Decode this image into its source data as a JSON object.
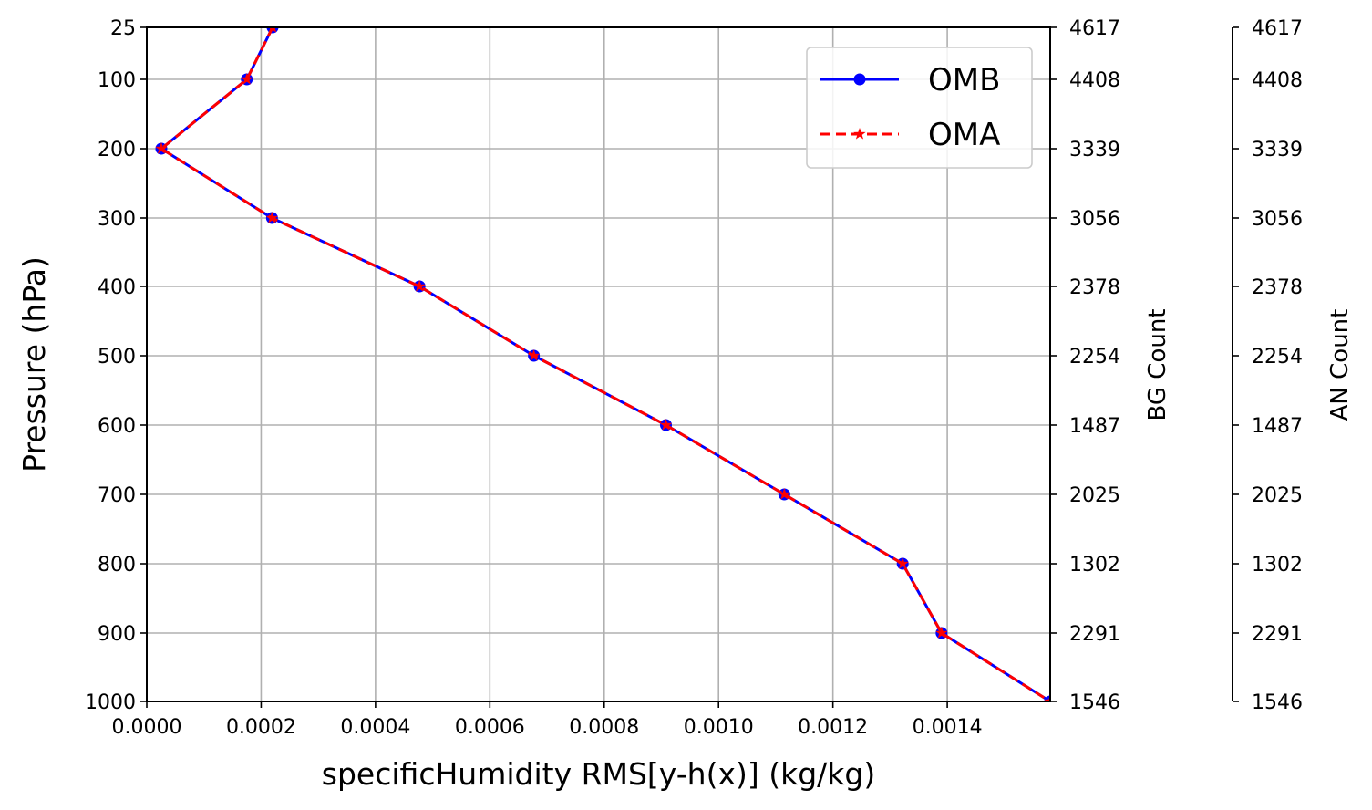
{
  "chart_data": {
    "type": "line",
    "xlabel": "specificHumidity RMS[y-h(x)] (kg/kg)",
    "ylabel": "Pressure (hPa)",
    "xlim": [
      0.0,
      0.00158
    ],
    "ylim_inverted": true,
    "x_ticks": [
      {
        "value": 0.0,
        "label": "0.0000"
      },
      {
        "value": 0.0002,
        "label": "0.0002"
      },
      {
        "value": 0.0004,
        "label": "0.0004"
      },
      {
        "value": 0.0006,
        "label": "0.0006"
      },
      {
        "value": 0.0008,
        "label": "0.0008"
      },
      {
        "value": 0.001,
        "label": "0.0010"
      },
      {
        "value": 0.0012,
        "label": "0.0012"
      },
      {
        "value": 0.0014,
        "label": "0.0014"
      }
    ],
    "pressure_levels": [
      "25",
      "100",
      "200",
      "300",
      "400",
      "500",
      "600",
      "700",
      "800",
      "900",
      "1000"
    ],
    "bg_count_label": "BG Count",
    "bg_counts": [
      "4617",
      "4408",
      "3339",
      "3056",
      "2378",
      "2254",
      "1487",
      "2025",
      "1302",
      "2291",
      "1546"
    ],
    "an_count_label": "AN Count",
    "an_counts": [
      "4617",
      "4408",
      "3339",
      "3056",
      "2378",
      "2254",
      "1487",
      "2025",
      "1302",
      "2291",
      "1546"
    ],
    "grid": true,
    "legend_position": "top-right",
    "series": [
      {
        "name": "OMB",
        "color": "#0000ff",
        "style": "solid",
        "marker": "circle",
        "values": [
          0.00022,
          0.000175,
          2.55e-05,
          0.000219,
          0.000477,
          0.000677,
          0.000908,
          0.001115,
          0.001322,
          0.00139,
          0.00158
        ]
      },
      {
        "name": "OMA",
        "color": "#ff0000",
        "style": "dashed",
        "marker": "star",
        "values": [
          0.00022,
          0.000175,
          2.55e-05,
          0.000219,
          0.000477,
          0.000677,
          0.000908,
          0.001115,
          0.001322,
          0.00139,
          0.00158
        ]
      }
    ]
  }
}
